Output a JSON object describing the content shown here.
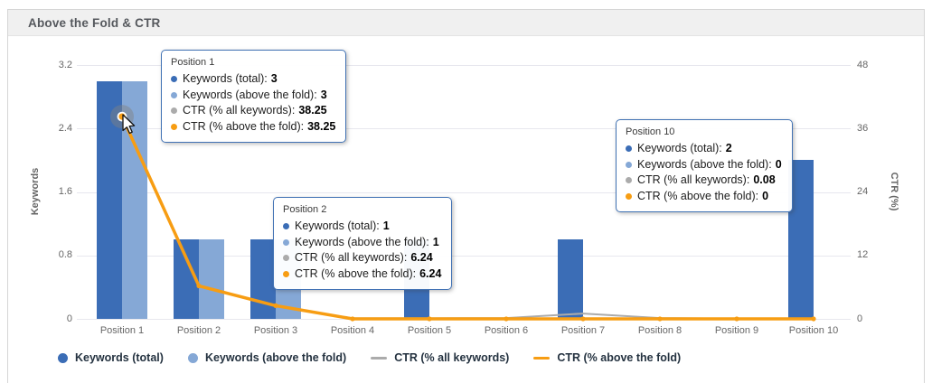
{
  "header": {
    "title": "Above the Fold & CTR"
  },
  "colors": {
    "bar_total": "#3b6db6",
    "bar_above_fold": "#85a8d6",
    "line_ctr_all": "#ababab",
    "line_ctr_above": "#f79d13",
    "tooltip_border": "#4172b4",
    "grid": "#e7e7ee",
    "axis_text": "#666666",
    "header_bg": "#f0f0f0"
  },
  "chart_data": {
    "type": "bar",
    "subtype": "grouped bars with two overlay lines (dual axis)",
    "title": "Above the Fold & CTR",
    "categories": [
      "Position 1",
      "Position 2",
      "Position 3",
      "Position 4",
      "Position 5",
      "Position 6",
      "Position 7",
      "Position 8",
      "Position 9",
      "Position 10"
    ],
    "series": [
      {
        "name": "Keywords (total)",
        "type": "bar",
        "axis": "left",
        "color": "#3b6db6",
        "values": [
          3,
          1,
          1,
          0,
          1,
          0,
          1,
          0,
          0,
          2
        ]
      },
      {
        "name": "Keywords (above the fold)",
        "type": "bar",
        "axis": "left",
        "color": "#85a8d6",
        "values": [
          3,
          1,
          1,
          0,
          0,
          0,
          0,
          0,
          0,
          0
        ]
      },
      {
        "name": "CTR (% all keywords)",
        "type": "line",
        "axis": "right",
        "color": "#ababab",
        "values": [
          38.25,
          6.24,
          2.5,
          0.1,
          0.1,
          0.15,
          1,
          0.15,
          0.05,
          0.08
        ]
      },
      {
        "name": "CTR (% above the fold)",
        "type": "line",
        "axis": "right",
        "color": "#f79d13",
        "values": [
          38.25,
          6.24,
          2.5,
          0,
          0,
          0,
          0,
          0,
          0,
          0
        ]
      }
    ],
    "ylabel_left": "Keywords",
    "yticks_left": [
      3.2,
      2.4,
      1.6,
      0.8,
      0
    ],
    "ylim_left": [
      0,
      3.2
    ],
    "ylabel_right": "CTR (%)",
    "yticks_right": [
      48,
      36,
      24,
      12,
      0
    ],
    "ylim_right": [
      0,
      48
    ],
    "grid": true,
    "legend_position": "bottom-left",
    "hovered_point": {
      "category": "Position 1",
      "series": "CTR (% above the fold)",
      "value": 38.25
    }
  },
  "tooltips": [
    {
      "title": "Position 1",
      "rows": [
        {
          "label": "Keywords (total):",
          "value": "3"
        },
        {
          "label": "Keywords (above the fold):",
          "value": "3"
        },
        {
          "label": "CTR (% all keywords):",
          "value": "38.25"
        },
        {
          "label": "CTR (% above the fold):",
          "value": "38.25"
        }
      ]
    },
    {
      "title": "Position 2",
      "rows": [
        {
          "label": "Keywords (total):",
          "value": "1"
        },
        {
          "label": "Keywords (above the fold):",
          "value": "1"
        },
        {
          "label": "CTR (% all keywords):",
          "value": "6.24"
        },
        {
          "label": "CTR (% above the fold):",
          "value": "6.24"
        }
      ]
    },
    {
      "title": "Position 10",
      "rows": [
        {
          "label": "Keywords (total):",
          "value": "2"
        },
        {
          "label": "Keywords (above the fold):",
          "value": "0"
        },
        {
          "label": "CTR (% all keywords):",
          "value": "0.08"
        },
        {
          "label": "CTR (% above the fold):",
          "value": "0"
        }
      ]
    }
  ],
  "legend": {
    "items": [
      {
        "label": "Keywords (total)",
        "swatch": "circle",
        "color": "#3b6db6"
      },
      {
        "label": "Keywords (above the fold)",
        "swatch": "circle",
        "color": "#85a8d6"
      },
      {
        "label": "CTR (% all keywords)",
        "swatch": "line",
        "color": "#ababab"
      },
      {
        "label": "CTR (% above the fold)",
        "swatch": "line",
        "color": "#f79d13"
      }
    ]
  }
}
